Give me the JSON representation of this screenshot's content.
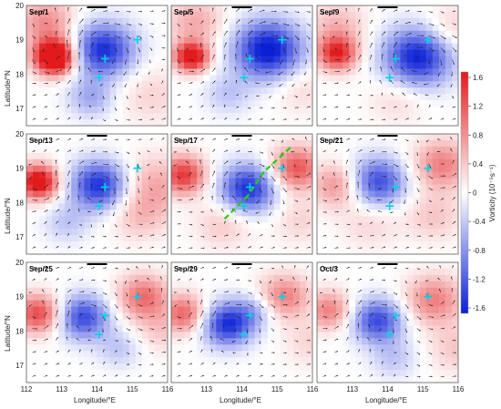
{
  "figure": {
    "lat_ticks": [
      "20",
      "19",
      "18",
      "17"
    ],
    "lon_ticks": [
      "112",
      "113",
      "114",
      "115",
      "116"
    ],
    "ylabel": "Latitude/°N",
    "xlabel": "Longitude/°E",
    "colorbar": {
      "label": "Vorticity (10⁻⁵s⁻¹)",
      "ticks": [
        "1.6",
        "1.2",
        "0.8",
        "0.4",
        "0",
        "-0.4",
        "-0.8",
        "-1.2",
        "-1.6"
      ],
      "color_max": "#e31a1c",
      "color_mid": "#ffffff",
      "color_min": "#0a1fd6"
    },
    "marker_color": "#00d2e6",
    "track_color": "#1fd10f",
    "panels": [
      {
        "label": "Sep/1",
        "eddies": [
          {
            "lon": 112.7,
            "lat": 18.5,
            "a": 2.6,
            "s": 0.35
          },
          {
            "lon": 113.9,
            "lat": 18.7,
            "a": -1.5,
            "s": 0.55
          },
          {
            "lon": 112.5,
            "lat": 19.5,
            "a": 0.8,
            "s": 0.5
          },
          {
            "lon": 113.6,
            "lat": 17.3,
            "a": -0.6,
            "s": 0.4
          },
          {
            "lon": 115.1,
            "lat": 17.4,
            "a": 0.3,
            "s": 0.6
          }
        ],
        "markers": [
          {
            "lon": 114.75,
            "lat": 19.0
          },
          {
            "lon": 113.95,
            "lat": 18.45
          },
          {
            "lon": 113.8,
            "lat": 17.9
          }
        ]
      },
      {
        "label": "Sep/5",
        "eddies": [
          {
            "lon": 112.5,
            "lat": 18.5,
            "a": 1.9,
            "s": 0.3
          },
          {
            "lon": 114.4,
            "lat": 18.7,
            "a": -1.7,
            "s": 0.6
          },
          {
            "lon": 112.6,
            "lat": 19.5,
            "a": 0.6,
            "s": 0.5
          },
          {
            "lon": 113.4,
            "lat": 17.4,
            "a": -0.4,
            "s": 0.4
          },
          {
            "lon": 115.2,
            "lat": 17.6,
            "a": 0.3,
            "s": 0.5
          }
        ],
        "markers": [
          {
            "lon": 114.75,
            "lat": 19.0
          },
          {
            "lon": 113.95,
            "lat": 18.45
          },
          {
            "lon": 113.8,
            "lat": 17.9
          }
        ]
      },
      {
        "label": "Sep/9",
        "eddies": [
          {
            "lon": 112.5,
            "lat": 18.6,
            "a": 1.5,
            "s": 0.35
          },
          {
            "lon": 114.5,
            "lat": 18.5,
            "a": -1.6,
            "s": 0.6
          },
          {
            "lon": 112.5,
            "lat": 19.4,
            "a": 0.5,
            "s": 0.5
          },
          {
            "lon": 115.3,
            "lat": 19.3,
            "a": 0.4,
            "s": 0.5
          },
          {
            "lon": 114.0,
            "lat": 17.3,
            "a": 0.3,
            "s": 0.5
          }
        ],
        "markers": [
          {
            "lon": 114.75,
            "lat": 19.0
          },
          {
            "lon": 113.95,
            "lat": 18.45
          },
          {
            "lon": 113.8,
            "lat": 17.9
          }
        ]
      },
      {
        "label": "Sep/13",
        "eddies": [
          {
            "lon": 112.3,
            "lat": 18.6,
            "a": 1.9,
            "s": 0.35
          },
          {
            "lon": 113.8,
            "lat": 18.5,
            "a": -1.5,
            "s": 0.5
          },
          {
            "lon": 115.2,
            "lat": 18.5,
            "a": 0.6,
            "s": 0.6
          },
          {
            "lon": 113.0,
            "lat": 17.4,
            "a": -0.4,
            "s": 0.4
          },
          {
            "lon": 114.8,
            "lat": 17.6,
            "a": 0.4,
            "s": 0.5
          }
        ],
        "markers": [
          {
            "lon": 114.75,
            "lat": 19.0
          },
          {
            "lon": 113.95,
            "lat": 18.45
          },
          {
            "lon": 113.8,
            "lat": 17.9
          }
        ]
      },
      {
        "label": "Sep/17",
        "eddies": [
          {
            "lon": 112.3,
            "lat": 18.8,
            "a": 1.4,
            "s": 0.4
          },
          {
            "lon": 113.9,
            "lat": 18.4,
            "a": -1.5,
            "s": 0.5
          },
          {
            "lon": 115.1,
            "lat": 19.0,
            "a": 1.2,
            "s": 0.45
          },
          {
            "lon": 113.3,
            "lat": 17.4,
            "a": 0.4,
            "s": 0.5
          },
          {
            "lon": 115.2,
            "lat": 17.5,
            "a": 0.3,
            "s": 0.5
          }
        ],
        "markers": [
          {
            "lon": 114.75,
            "lat": 19.0
          },
          {
            "lon": 113.95,
            "lat": 18.45
          },
          {
            "lon": 113.8,
            "lat": 17.9
          }
        ],
        "track": [
          {
            "lon": 114.95,
            "lat": 19.6
          },
          {
            "lon": 114.3,
            "lat": 18.9
          },
          {
            "lon": 113.9,
            "lat": 18.2
          },
          {
            "lon": 113.3,
            "lat": 17.5
          }
        ]
      },
      {
        "label": "Sep/21",
        "eddies": [
          {
            "lon": 112.5,
            "lat": 18.5,
            "a": 0.8,
            "s": 0.45
          },
          {
            "lon": 113.5,
            "lat": 18.6,
            "a": -1.3,
            "s": 0.5
          },
          {
            "lon": 115.1,
            "lat": 19.1,
            "a": 0.9,
            "s": 0.5
          },
          {
            "lon": 114.9,
            "lat": 17.6,
            "a": 0.4,
            "s": 0.5
          },
          {
            "lon": 113.3,
            "lat": 17.4,
            "a": 0.3,
            "s": 0.5
          }
        ],
        "markers": [
          {
            "lon": 114.75,
            "lat": 19.0
          },
          {
            "lon": 113.95,
            "lat": 18.45
          },
          {
            "lon": 113.8,
            "lat": 17.9
          }
        ]
      },
      {
        "label": "Sep/25",
        "eddies": [
          {
            "lon": 112.3,
            "lat": 18.5,
            "a": 1.3,
            "s": 0.4
          },
          {
            "lon": 113.4,
            "lat": 18.4,
            "a": -1.3,
            "s": 0.45
          },
          {
            "lon": 114.9,
            "lat": 19.0,
            "a": 1.0,
            "s": 0.45
          },
          {
            "lon": 114.3,
            "lat": 17.5,
            "a": -0.4,
            "s": 0.4
          },
          {
            "lon": 115.4,
            "lat": 18.1,
            "a": 0.4,
            "s": 0.5
          }
        ],
        "markers": [
          {
            "lon": 114.75,
            "lat": 19.0
          },
          {
            "lon": 113.95,
            "lat": 18.45
          },
          {
            "lon": 113.8,
            "lat": 17.9
          }
        ]
      },
      {
        "label": "Sep/29",
        "eddies": [
          {
            "lon": 112.3,
            "lat": 18.5,
            "a": 1.1,
            "s": 0.4
          },
          {
            "lon": 113.4,
            "lat": 18.2,
            "a": -1.5,
            "s": 0.45
          },
          {
            "lon": 114.8,
            "lat": 19.0,
            "a": 0.9,
            "s": 0.45
          },
          {
            "lon": 114.1,
            "lat": 18.6,
            "a": -0.5,
            "s": 0.35
          },
          {
            "lon": 115.5,
            "lat": 17.7,
            "a": 0.3,
            "s": 0.5
          }
        ],
        "markers": [
          {
            "lon": 114.75,
            "lat": 19.0
          },
          {
            "lon": 113.95,
            "lat": 18.45
          },
          {
            "lon": 113.8,
            "lat": 17.9
          }
        ]
      },
      {
        "label": "Oct/3",
        "eddies": [
          {
            "lon": 112.3,
            "lat": 18.6,
            "a": 0.9,
            "s": 0.4
          },
          {
            "lon": 113.5,
            "lat": 18.3,
            "a": -1.3,
            "s": 0.45
          },
          {
            "lon": 114.9,
            "lat": 18.9,
            "a": 0.9,
            "s": 0.5
          },
          {
            "lon": 113.9,
            "lat": 17.2,
            "a": -0.4,
            "s": 0.4
          },
          {
            "lon": 115.5,
            "lat": 17.5,
            "a": 0.4,
            "s": 0.5
          }
        ],
        "markers": [
          {
            "lon": 114.75,
            "lat": 19.0
          },
          {
            "lon": 113.95,
            "lat": 18.45
          },
          {
            "lon": 113.8,
            "lat": 17.9
          }
        ]
      }
    ]
  }
}
